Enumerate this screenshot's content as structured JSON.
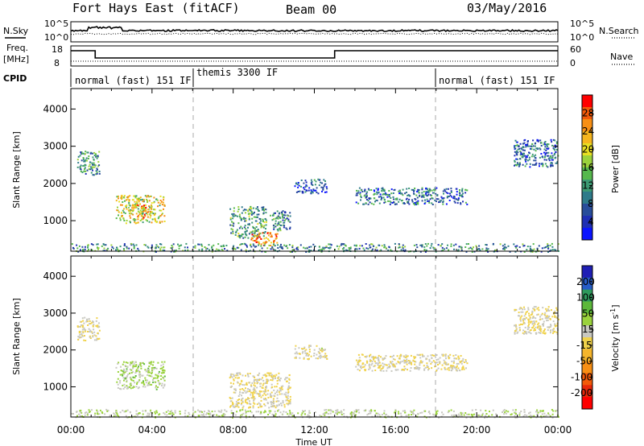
{
  "header": {
    "title": "Fort Hays East (fitACF)",
    "beam": "Beam 00",
    "date": "03/May/2016"
  },
  "side_labels": {
    "nsky": "N.Sky",
    "nsearch": "N.Search",
    "freq_top": "Freq.",
    "freq_unit": "[MHz]",
    "nave": "Nave",
    "cpid": "CPID"
  },
  "noise_axis": {
    "left_ticks": [
      "10^5",
      "10^0"
    ],
    "right_ticks": [
      "10^5",
      "10^0"
    ]
  },
  "freq_axis": {
    "left_ticks": [
      "18",
      "8"
    ],
    "right_ticks": [
      "60",
      "0"
    ]
  },
  "cpid_segments": [
    {
      "label": "normal (fast) 151 IF",
      "start_h": 0,
      "end_h": 6
    },
    {
      "label": "themis 3300 IF",
      "start_h": 6,
      "end_h": 18
    },
    {
      "label": "normal (fast) 151 IF",
      "start_h": 18,
      "end_h": 24
    }
  ],
  "x_axis": {
    "label": "Time UT",
    "ticks": [
      "00:00",
      "04:00",
      "08:00",
      "12:00",
      "16:00",
      "20:00",
      "00:00"
    ]
  },
  "y_axis": {
    "label": "Slant Range [km]",
    "ticks": [
      "4000",
      "3000",
      "2000",
      "1000"
    ]
  },
  "power_colorbar": {
    "label": "Power [dB]",
    "ticks": [
      "28",
      "24",
      "20",
      "16",
      "12",
      "8",
      "4"
    ],
    "colors": [
      "#ff0000",
      "#f25a0a",
      "#f78f14",
      "#f5b51e",
      "#e8df23",
      "#9bd23c",
      "#56b84d",
      "#3c9a73",
      "#2e7b8a",
      "#284d9a",
      "#1f2fb5",
      "#0a14ff"
    ]
  },
  "velocity_colorbar": {
    "label": "Velocity [m s^-1]",
    "label_text": "Velocity",
    "label_unit": "[m s",
    "label_exp": "-1",
    "label_close": "]",
    "ticks": [
      "200",
      "100",
      "50",
      "15",
      "-15",
      "-50",
      "-100",
      "-200"
    ],
    "colors": [
      "#1f1fb5",
      "#265cc8",
      "#2e9a5c",
      "#5cb83a",
      "#9ad23c",
      "#c8c8c0",
      "#f0d24a",
      "#f5b52b",
      "#f78f14",
      "#f25a0a",
      "#e8280a",
      "#ff0000"
    ]
  },
  "chart_data": [
    {
      "type": "heatmap",
      "title": "Fort Hays East (fitACF)",
      "subtitle": "Beam 00",
      "panel": "power",
      "xlabel": "Time UT",
      "ylabel": "Slant Range [km]",
      "xlim_hours": [
        0,
        24
      ],
      "ylim_km": [
        180,
        4550
      ],
      "colorbar": {
        "label": "Power [dB]",
        "range": [
          0,
          30
        ]
      },
      "echo_regions": [
        {
          "t0": 0.3,
          "t1": 1.4,
          "r0": 2250,
          "r1": 2900,
          "val": 10
        },
        {
          "t0": 2.2,
          "t1": 4.6,
          "r0": 950,
          "r1": 1700,
          "val": 18
        },
        {
          "t0": 3.0,
          "t1": 4.0,
          "r0": 1100,
          "r1": 1450,
          "val": 22
        },
        {
          "t0": 7.8,
          "t1": 9.6,
          "r0": 550,
          "r1": 1400,
          "val": 12
        },
        {
          "t0": 8.8,
          "t1": 10.2,
          "r0": 350,
          "r1": 700,
          "val": 25
        },
        {
          "t0": 9.8,
          "t1": 10.8,
          "r0": 750,
          "r1": 1300,
          "val": 10
        },
        {
          "t0": 11.0,
          "t1": 12.6,
          "r0": 1750,
          "r1": 2150,
          "val": 6
        },
        {
          "t0": 14.0,
          "t1": 19.5,
          "r0": 1450,
          "r1": 1900,
          "val": 8
        },
        {
          "t0": 21.8,
          "t1": 24.0,
          "r0": 2450,
          "r1": 3200,
          "val": 8
        },
        {
          "t0": 0.0,
          "t1": 24.0,
          "r0": 180,
          "r1": 400,
          "val": 10
        }
      ]
    },
    {
      "type": "heatmap",
      "panel": "velocity",
      "xlabel": "Time UT",
      "ylabel": "Slant Range [km]",
      "xlim_hours": [
        0,
        24
      ],
      "ylim_km": [
        180,
        4550
      ],
      "colorbar": {
        "label": "Velocity [m s^-1]",
        "range": [
          -200,
          200
        ]
      },
      "echo_regions": [
        {
          "t0": 0.3,
          "t1": 1.4,
          "r0": 2250,
          "r1": 2900,
          "val": 0
        },
        {
          "t0": 2.2,
          "t1": 4.6,
          "r0": 950,
          "r1": 1700,
          "val": 40
        },
        {
          "t0": 7.8,
          "t1": 10.8,
          "r0": 450,
          "r1": 1400,
          "val": 0
        },
        {
          "t0": 11.0,
          "t1": 12.6,
          "r0": 1750,
          "r1": 2150,
          "val": 5
        },
        {
          "t0": 14.0,
          "t1": 19.5,
          "r0": 1450,
          "r1": 1900,
          "val": 0
        },
        {
          "t0": 21.8,
          "t1": 24.0,
          "r0": 2450,
          "r1": 3200,
          "val": 0
        },
        {
          "t0": 0.0,
          "t1": 24.0,
          "r0": 180,
          "r1": 400,
          "val": 30
        }
      ]
    }
  ]
}
